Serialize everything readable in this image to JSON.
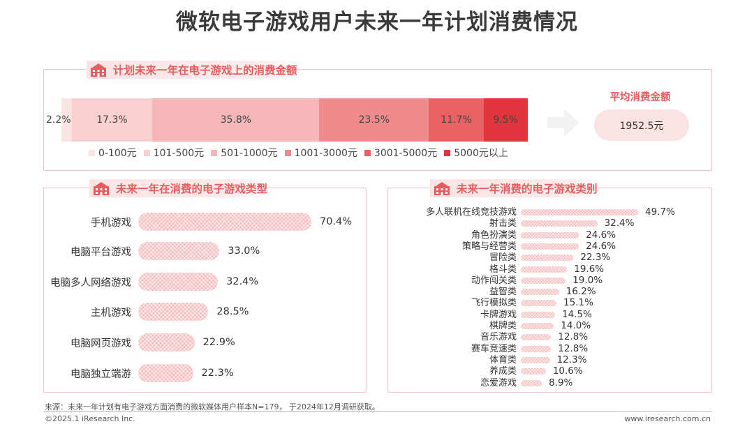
{
  "title": "微软电子游戏用户未来一年计划消费情况",
  "chart_data": [
    {
      "type": "bar",
      "stacked": true,
      "orientation": "horizontal",
      "title": "计划未来一年在电子游戏上的消费金额",
      "categories": [
        "0-100元",
        "101-500元",
        "501-1000元",
        "1001-3000元",
        "3001-5000元",
        "5000元以上"
      ],
      "values": [
        2.2,
        17.3,
        35.8,
        23.5,
        11.7,
        9.5
      ],
      "value_labels": [
        "2.2%",
        "17.3%",
        "35.8%",
        "23.5%",
        "11.7%",
        "9.5%"
      ],
      "colors": [
        "#fbe3e4",
        "#f9cfd0",
        "#f4b6b8",
        "#ef8b8d",
        "#ea6163",
        "#e2343c"
      ],
      "legend": "bottom"
    },
    {
      "type": "bar",
      "orientation": "horizontal",
      "title": "未来一年在消费的电子游戏类型",
      "categories": [
        "手机游戏",
        "电脑平台游戏",
        "电脑多人网络游戏",
        "主机游戏",
        "电脑网页游戏",
        "电脑独立端游"
      ],
      "values": [
        70.4,
        33.0,
        32.4,
        28.5,
        22.9,
        22.3
      ],
      "value_labels": [
        "70.4%",
        "33.0%",
        "32.4%",
        "28.5%",
        "22.9%",
        "22.3%"
      ]
    },
    {
      "type": "bar",
      "orientation": "horizontal",
      "title": "未来一年消费的电子游戏类别",
      "categories": [
        "多人联机在线竞技游戏",
        "射击类",
        "角色扮演类",
        "策略与经营类",
        "冒险类",
        "格斗类",
        "动作闯关类",
        "益智类",
        "飞行模拟类",
        "卡牌游戏",
        "棋牌类",
        "音乐游戏",
        "赛车竞速类",
        "体育类",
        "养成类",
        "恋爱游戏"
      ],
      "values": [
        49.7,
        32.4,
        24.6,
        24.6,
        22.3,
        19.6,
        19.0,
        16.2,
        15.1,
        14.5,
        14.0,
        12.8,
        12.8,
        12.3,
        10.6,
        8.9
      ],
      "value_labels": [
        "49.7%",
        "32.4%",
        "24.6%",
        "24.6%",
        "22.3%",
        "19.6%",
        "19.0%",
        "16.2%",
        "15.1%",
        "14.5%",
        "14.0%",
        "12.8%",
        "12.8%",
        "12.3%",
        "10.6%",
        "8.9%"
      ]
    }
  ],
  "average": {
    "label": "平均消费金额",
    "value": "1952.5元"
  },
  "icons": {
    "panel_icon": "building-icon",
    "arrow": "right-arrow-icon"
  },
  "footer": {
    "source": "来源：未来一年计划有电子游戏方面消费的微软媒体用户样本N=179， 于2024年12月调研获取。",
    "copyright": "©2025.1 iResearch Inc.",
    "website": "www.iresearch.com.cn"
  }
}
